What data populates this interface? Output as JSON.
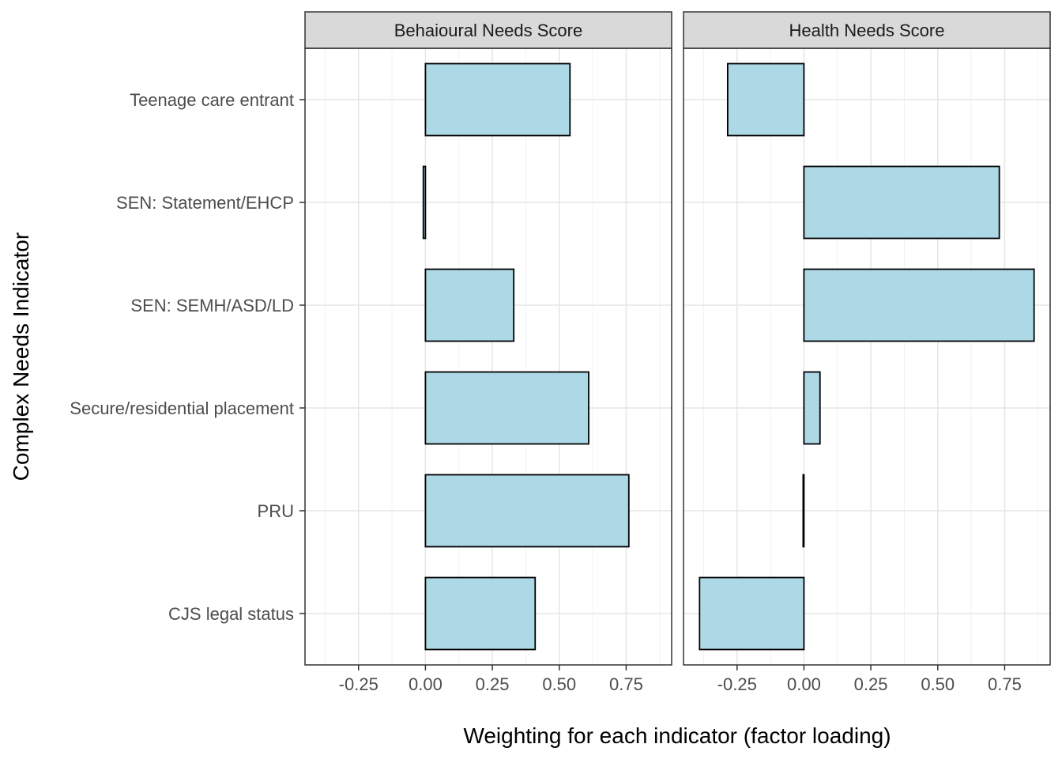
{
  "chart_data": {
    "type": "bar",
    "orientation": "horizontal",
    "xlabel": "Weighting for each indicator (factor loading)",
    "ylabel": "Complex Needs Indicator",
    "categories": [
      "Teenage care entrant",
      "SEN: Statement/EHCP",
      "SEN: SEMH/ASD/LD",
      "Secure/residential placement",
      "PRU",
      "CJS legal status"
    ],
    "xlim": [
      -0.45,
      0.92
    ],
    "xticks": [
      -0.25,
      0.0,
      0.25,
      0.5,
      0.75
    ],
    "xtick_labels": [
      "-0.25",
      "0.00",
      "0.25",
      "0.50",
      "0.75"
    ],
    "grid": true,
    "bar_fill": "#add8e6",
    "bar_stroke": "#000000",
    "panels": [
      {
        "title": "Behaioural Needs Score",
        "values": [
          0.54,
          -0.008,
          0.33,
          0.61,
          0.76,
          0.41
        ]
      },
      {
        "title": "Health Needs Score",
        "values": [
          -0.285,
          0.73,
          0.86,
          0.06,
          -0.003,
          -0.39
        ]
      }
    ]
  }
}
